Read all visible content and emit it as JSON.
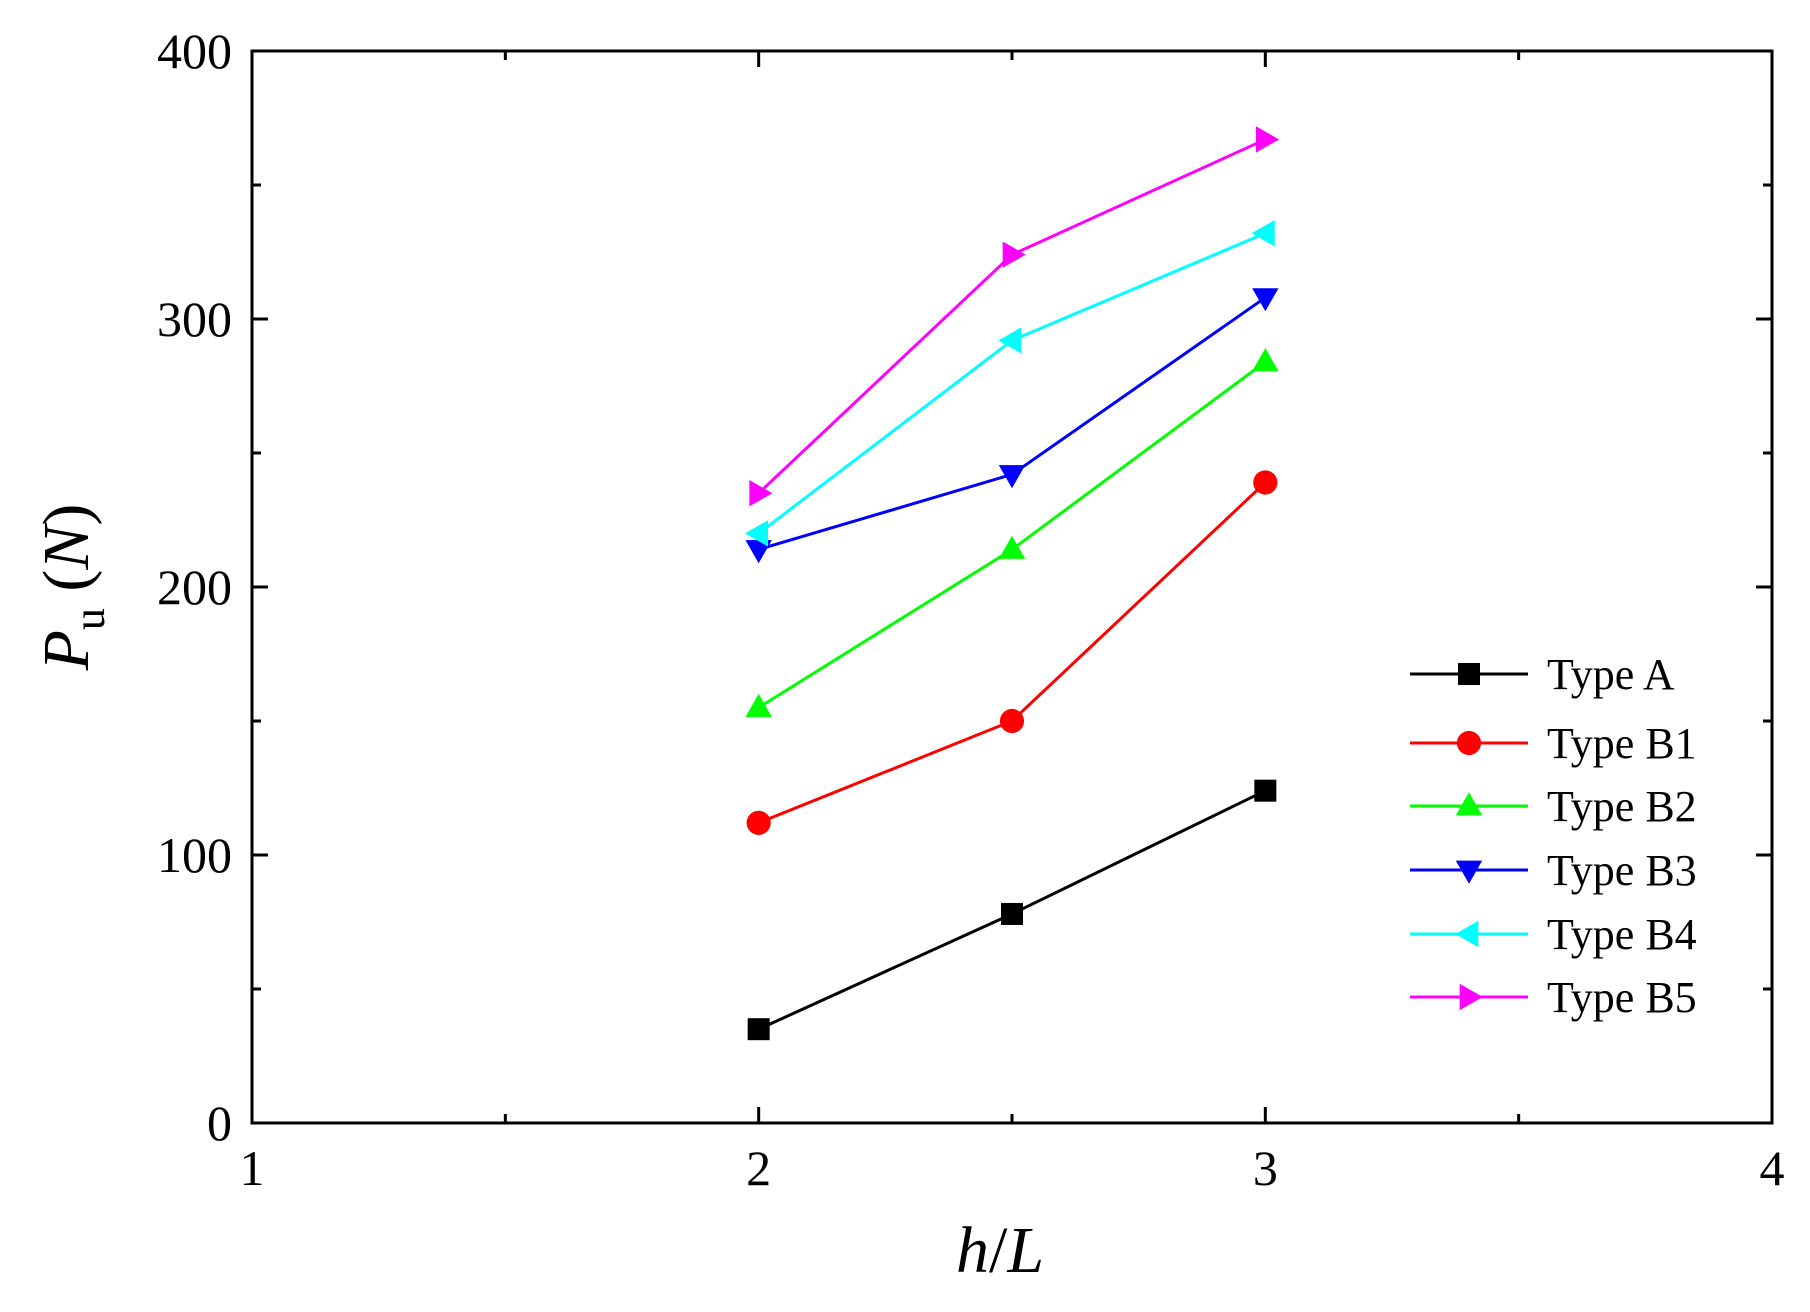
{
  "chart_data": {
    "type": "line",
    "title": "",
    "xlabel": {
      "italic_h": "h",
      "slash": "/",
      "italic_L": "L"
    },
    "ylabel": {
      "main": "P",
      "sub": "u",
      "unit_open": " (",
      "unit": "N",
      "unit_close": ")"
    },
    "xlim": [
      1,
      4
    ],
    "ylim": [
      0,
      400
    ],
    "x_ticks": [
      1,
      2,
      3,
      4
    ],
    "x_minor_ticks": [
      1.5,
      2.5,
      3.5
    ],
    "y_ticks": [
      0,
      100,
      200,
      300,
      400
    ],
    "y_minor_ticks": [
      50,
      150,
      250,
      350
    ],
    "grid": false,
    "legend_position": "right",
    "x": [
      2,
      2.5,
      3
    ],
    "series": [
      {
        "name": "Type A",
        "color": "#000000",
        "marker": "square",
        "values": [
          35,
          78,
          124
        ]
      },
      {
        "name": "Type B1",
        "color": "#ff0000",
        "marker": "circle",
        "values": [
          112,
          150,
          239
        ]
      },
      {
        "name": "Type B2",
        "color": "#00ff00",
        "marker": "triangle-up",
        "values": [
          155,
          214,
          284
        ]
      },
      {
        "name": "Type B3",
        "color": "#0000ff",
        "marker": "triangle-down",
        "values": [
          214,
          242,
          308
        ]
      },
      {
        "name": "Type B4",
        "color": "#00ffff",
        "marker": "triangle-left",
        "values": [
          220,
          292,
          332
        ]
      },
      {
        "name": "Type B5",
        "color": "#ff00ff",
        "marker": "triangle-right",
        "values": [
          235,
          324,
          367
        ]
      }
    ]
  }
}
